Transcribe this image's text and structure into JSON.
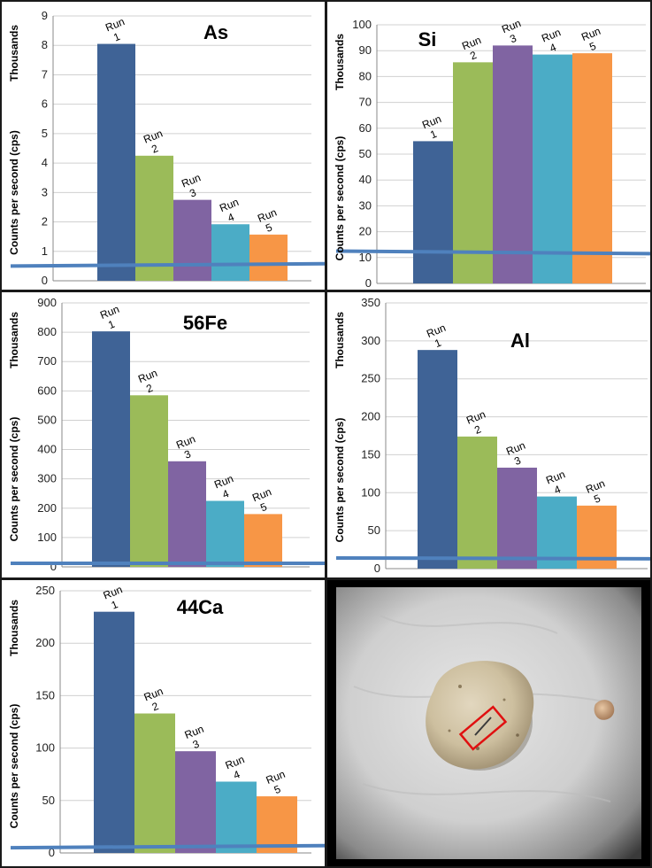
{
  "colors": {
    "run1": "#3F6396",
    "run2": "#9BBB59",
    "run3": "#8064A2",
    "run4": "#4BACC6",
    "run5": "#F79646",
    "threshold": "#4F81BD",
    "grid": "#d0d0d0",
    "roi": "#e01010"
  },
  "chart_data": [
    {
      "id": "as",
      "type": "bar",
      "title": "As",
      "ylabel": "Counts per second (cps)",
      "yunit": "Thousands",
      "ylim": [
        0,
        9
      ],
      "ytick_step": 1,
      "categories": [
        "Run 1",
        "Run 2",
        "Run 3",
        "Run 4",
        "Run 5"
      ],
      "values": [
        8.05,
        4.25,
        2.75,
        1.92,
        1.57
      ],
      "threshold": [
        0.5,
        0.58
      ],
      "grid": true
    },
    {
      "id": "si",
      "type": "bar",
      "title": "Si",
      "ylabel": "Counts per second (cps)",
      "yunit": "Thousands",
      "ylim": [
        0,
        100
      ],
      "ytick_step": 10,
      "categories": [
        "Run 1",
        "Run 2",
        "Run 3",
        "Run 4",
        "Run 5"
      ],
      "values": [
        55,
        85.5,
        92,
        88.5,
        89
      ],
      "threshold": [
        12.5,
        11.5
      ],
      "grid": true
    },
    {
      "id": "fe",
      "type": "bar",
      "title": "56Fe",
      "ylabel": "Counts per second (cps)",
      "yunit": "Thousands",
      "ylim": [
        0,
        900
      ],
      "ytick_step": 100,
      "categories": [
        "Run 1",
        "Run 2",
        "Run 3",
        "Run 4",
        "Run 5"
      ],
      "values": [
        803,
        585,
        360,
        225,
        180
      ],
      "threshold": [
        12,
        12
      ],
      "grid": true
    },
    {
      "id": "al",
      "type": "bar",
      "title": "Al",
      "ylabel": "Counts per second (cps)",
      "yunit": "Thousands",
      "ylim": [
        0,
        350
      ],
      "ytick_step": 50,
      "categories": [
        "Run 1",
        "Run 2",
        "Run 3",
        "Run 4",
        "Run 5"
      ],
      "values": [
        288,
        174,
        133,
        95,
        83
      ],
      "threshold": [
        14,
        13
      ],
      "grid": true
    },
    {
      "id": "ca",
      "type": "bar",
      "title": "44Ca",
      "ylabel": "Counts per second (cps)",
      "yunit": "Thousands",
      "ylim": [
        0,
        250
      ],
      "ytick_step": 50,
      "categories": [
        "Run 1",
        "Run 2",
        "Run 3",
        "Run 4",
        "Run 5"
      ],
      "values": [
        230,
        133,
        97,
        68,
        54
      ],
      "threshold": [
        5,
        7
      ],
      "grid": true
    }
  ]
}
